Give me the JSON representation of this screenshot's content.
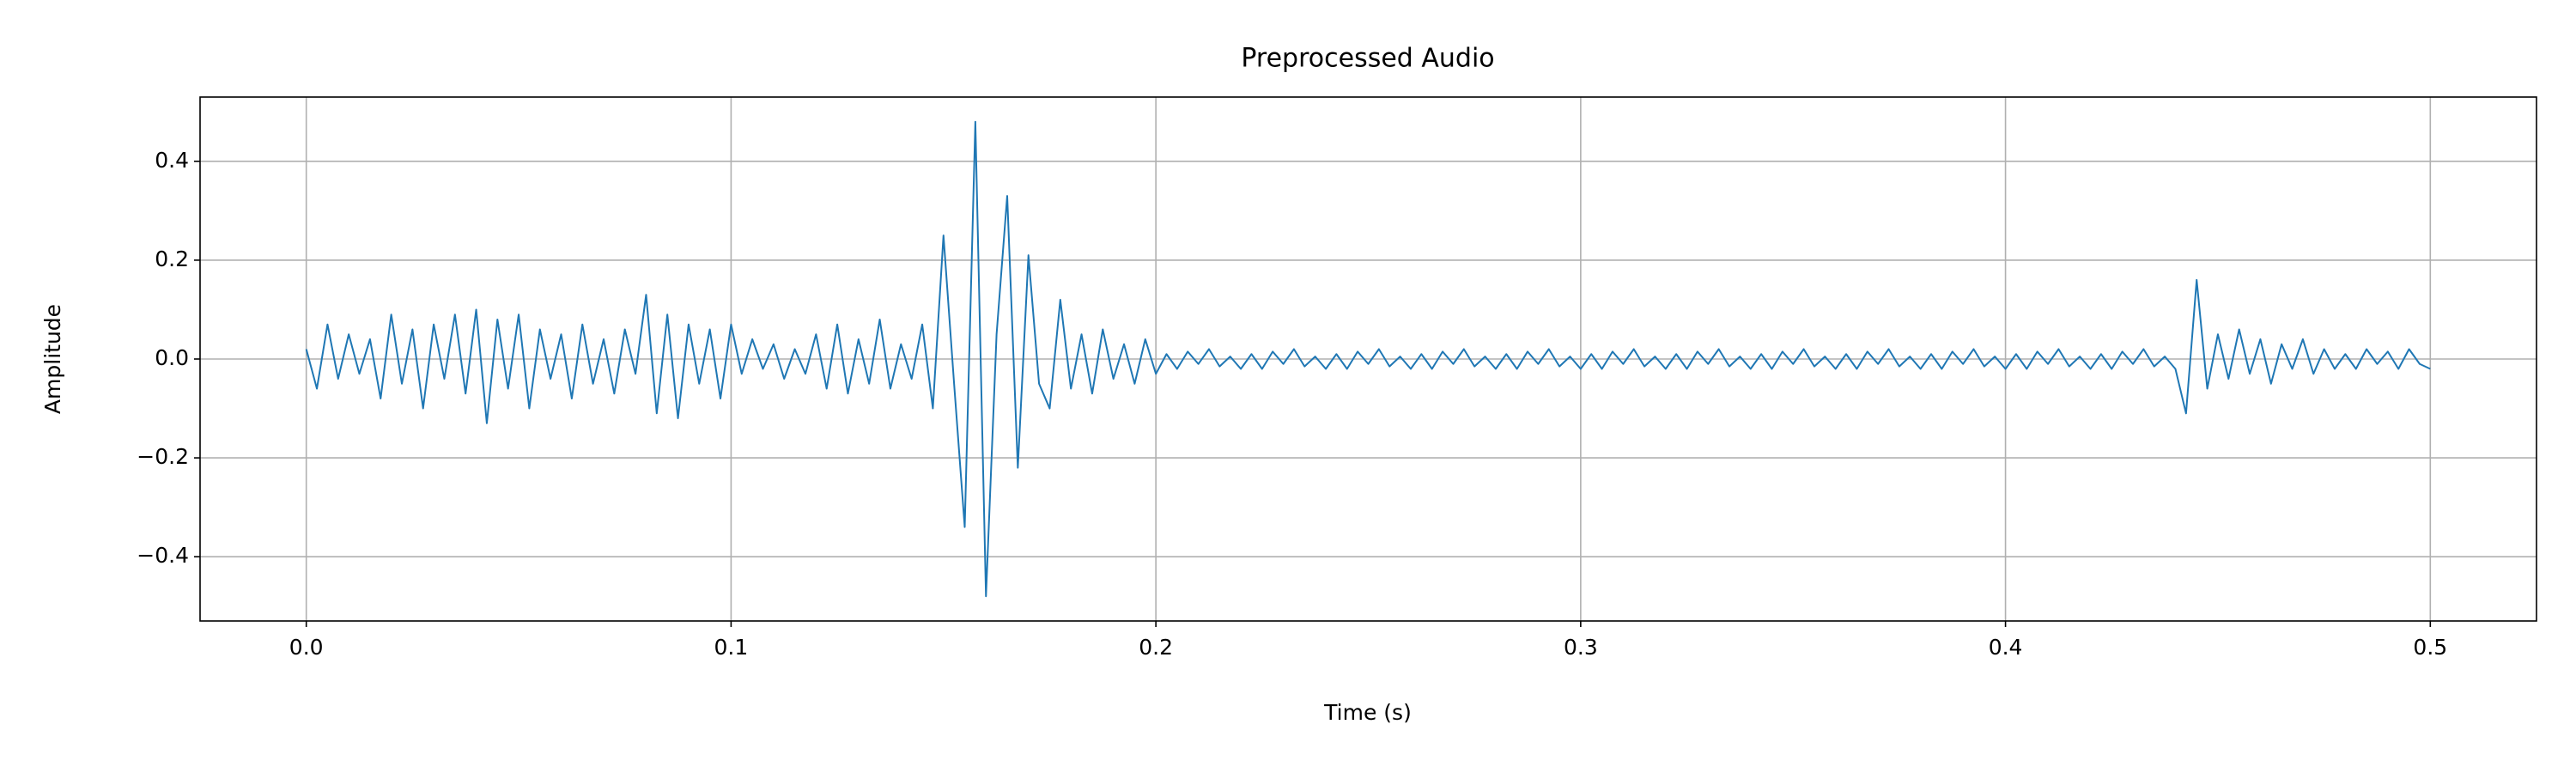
{
  "chart_data": {
    "type": "line",
    "title": "Preprocessed Audio",
    "x_label": "Time (s)",
    "y_label": "Amplitude",
    "color": "#1f77b4",
    "grid": true,
    "xlim": [
      -0.025,
      0.525
    ],
    "ylim": [
      -0.53,
      0.53
    ],
    "xticks": [
      {
        "value": 0,
        "label": "0.0"
      },
      0.1,
      0.2,
      0.3,
      0.4,
      0.5
    ],
    "yticks": [
      {
        "value": -0.4,
        "label": "−0.4"
      },
      {
        "value": -0.2,
        "label": "−0.2"
      },
      {
        "value": 0,
        "label": "0.0"
      },
      0.2,
      0.4
    ],
    "x": [
      0,
      0.0025,
      0.005,
      0.0075,
      0.01,
      0.0125,
      0.015,
      0.0175,
      0.02,
      0.0225,
      0.025,
      0.0275,
      0.03,
      0.0325,
      0.035,
      0.0375,
      0.04,
      0.0425,
      0.045,
      0.0475,
      0.05,
      0.0525,
      0.055,
      0.0575,
      0.06,
      0.0625,
      0.065,
      0.0675,
      0.07,
      0.0725,
      0.075,
      0.0775,
      0.08,
      0.0825,
      0.085,
      0.0875,
      0.09,
      0.0925,
      0.095,
      0.0975,
      0.1,
      0.1025,
      0.105,
      0.1075,
      0.11,
      0.1125,
      0.115,
      0.1175,
      0.12,
      0.1225,
      0.125,
      0.1275,
      0.13,
      0.1325,
      0.135,
      0.1375,
      0.14,
      0.1425,
      0.145,
      0.1475,
      0.15,
      0.1525,
      0.155,
      0.1575,
      0.16,
      0.1625,
      0.165,
      0.1675,
      0.17,
      0.1725,
      0.175,
      0.1775,
      0.18,
      0.1825,
      0.185,
      0.1875,
      0.19,
      0.1925,
      0.195,
      0.1975,
      0.2,
      0.2025,
      0.205,
      0.2075,
      0.21,
      0.2125,
      0.215,
      0.2175,
      0.22,
      0.2225,
      0.225,
      0.2275,
      0.23,
      0.2325,
      0.235,
      0.2375,
      0.24,
      0.2425,
      0.245,
      0.2475,
      0.25,
      0.2525,
      0.255,
      0.2575,
      0.26,
      0.2625,
      0.265,
      0.2675,
      0.27,
      0.2725,
      0.275,
      0.2775,
      0.28,
      0.2825,
      0.285,
      0.2875,
      0.29,
      0.2925,
      0.295,
      0.2975,
      0.3,
      0.3025,
      0.305,
      0.3075,
      0.31,
      0.3125,
      0.315,
      0.3175,
      0.32,
      0.3225,
      0.325,
      0.3275,
      0.33,
      0.3325,
      0.335,
      0.3375,
      0.34,
      0.3425,
      0.345,
      0.3475,
      0.35,
      0.3525,
      0.355,
      0.3575,
      0.36,
      0.3625,
      0.365,
      0.3675,
      0.37,
      0.3725,
      0.375,
      0.3775,
      0.38,
      0.3825,
      0.385,
      0.3875,
      0.39,
      0.3925,
      0.395,
      0.3975,
      0.4,
      0.4025,
      0.405,
      0.4075,
      0.41,
      0.4125,
      0.415,
      0.4175,
      0.42,
      0.4225,
      0.425,
      0.4275,
      0.43,
      0.4325,
      0.435,
      0.4375,
      0.44,
      0.4425,
      0.445,
      0.4475,
      0.45,
      0.4525,
      0.455,
      0.4575,
      0.46,
      0.4625,
      0.465,
      0.4675,
      0.47,
      0.4725,
      0.475,
      0.4775,
      0.48,
      0.4825,
      0.485,
      0.4875,
      0.49,
      0.4925,
      0.495,
      0.4975,
      0.5
    ],
    "values": [
      0.02,
      -0.06,
      0.07,
      -0.04,
      0.05,
      -0.03,
      0.04,
      -0.08,
      0.09,
      -0.05,
      0.06,
      -0.1,
      0.07,
      -0.04,
      0.09,
      -0.07,
      0.1,
      -0.13,
      0.08,
      -0.06,
      0.09,
      -0.1,
      0.06,
      -0.04,
      0.05,
      -0.08,
      0.07,
      -0.05,
      0.04,
      -0.07,
      0.06,
      -0.03,
      0.13,
      -0.11,
      0.09,
      -0.12,
      0.07,
      -0.05,
      0.06,
      -0.08,
      0.07,
      -0.03,
      0.04,
      -0.02,
      0.03,
      -0.04,
      0.02,
      -0.03,
      0.05,
      -0.06,
      0.07,
      -0.07,
      0.04,
      -0.05,
      0.08,
      -0.06,
      0.03,
      -0.04,
      0.07,
      -0.1,
      0.25,
      -0.05,
      -0.34,
      0.48,
      -0.48,
      0.05,
      0.33,
      -0.22,
      0.21,
      -0.05,
      -0.1,
      0.12,
      -0.06,
      0.05,
      -0.07,
      0.06,
      -0.04,
      0.03,
      -0.05,
      0.04,
      -0.03,
      0.01,
      -0.02,
      0.015,
      -0.01,
      0.02,
      -0.015,
      0.005,
      -0.02,
      0.01,
      -0.02,
      0.015,
      -0.01,
      0.02,
      -0.015,
      0.005,
      -0.02,
      0.01,
      -0.02,
      0.015,
      -0.01,
      0.02,
      -0.015,
      0.005,
      -0.02,
      0.01,
      -0.02,
      0.015,
      -0.01,
      0.02,
      -0.015,
      0.005,
      -0.02,
      0.01,
      -0.02,
      0.015,
      -0.01,
      0.02,
      -0.015,
      0.005,
      -0.02,
      0.01,
      -0.02,
      0.015,
      -0.01,
      0.02,
      -0.015,
      0.005,
      -0.02,
      0.01,
      -0.02,
      0.015,
      -0.01,
      0.02,
      -0.015,
      0.005,
      -0.02,
      0.01,
      -0.02,
      0.015,
      -0.01,
      0.02,
      -0.015,
      0.005,
      -0.02,
      0.01,
      -0.02,
      0.015,
      -0.01,
      0.02,
      -0.015,
      0.005,
      -0.02,
      0.01,
      -0.02,
      0.015,
      -0.01,
      0.02,
      -0.015,
      0.005,
      -0.02,
      0.01,
      -0.02,
      0.015,
      -0.01,
      0.02,
      -0.015,
      0.005,
      -0.02,
      0.01,
      -0.02,
      0.015,
      -0.01,
      0.02,
      -0.015,
      0.005,
      -0.02,
      -0.11,
      0.16,
      -0.06,
      0.05,
      -0.04,
      0.06,
      -0.03,
      0.04,
      -0.05,
      0.03,
      -0.02,
      0.04,
      -0.03,
      0.02,
      -0.02,
      0.01,
      -0.02,
      0.02,
      -0.01,
      0.015,
      -0.02,
      0.02,
      -0.01,
      -0.02
    ]
  }
}
